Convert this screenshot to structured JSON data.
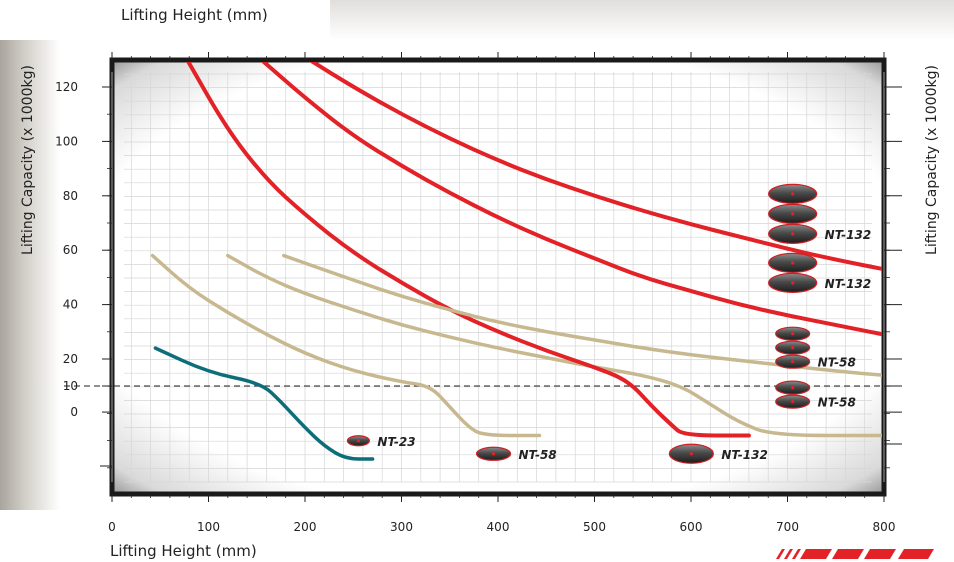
{
  "header": {
    "top_axis_title": "Lifting Height (mm)"
  },
  "chart_data": {
    "type": "line",
    "title": "",
    "xlabel": "Lifting Height (mm)",
    "ylabel": "Lifting Capacity (x 1000kg)",
    "y2label": "Lifting Capacity (x 1000kg)",
    "xlim": [
      0,
      800
    ],
    "x_ticks": [
      0,
      100,
      200,
      300,
      400,
      500,
      600,
      700,
      800
    ],
    "y_ticks": [
      {
        "label": "0",
        "value": 0
      },
      {
        "label": "10",
        "value": 10
      },
      {
        "label": "20",
        "value": 20
      },
      {
        "label": "40",
        "value": 40
      },
      {
        "label": "60",
        "value": 60
      },
      {
        "label": "80",
        "value": 80
      },
      {
        "label": "100",
        "value": 100
      },
      {
        "label": "120",
        "value": 120
      }
    ],
    "reference_line": {
      "y": 10,
      "style": "dashed"
    },
    "grid": true,
    "series": [
      {
        "name": "NT-23",
        "color": "#0d6e7a",
        "points": [
          [
            45,
            24
          ],
          [
            100,
            15
          ],
          [
            155,
            11
          ],
          [
            175,
            4
          ],
          [
            200,
            -6
          ],
          [
            220,
            -13
          ],
          [
            242,
            -18
          ],
          [
            270,
            -18
          ]
        ]
      },
      {
        "name": "NT-58",
        "color": "#c8b890",
        "points": [
          [
            42,
            58
          ],
          [
            80,
            46
          ],
          [
            120,
            37
          ],
          [
            160,
            29
          ],
          [
            200,
            22
          ],
          [
            250,
            15.5
          ],
          [
            300,
            11.5
          ],
          [
            330,
            10
          ],
          [
            350,
            2
          ],
          [
            370,
            -6
          ],
          [
            385,
            -9
          ],
          [
            443,
            -9
          ]
        ]
      },
      {
        "name": "NT-58",
        "color": "#c8b890",
        "points": [
          [
            120,
            58
          ],
          [
            160,
            50
          ],
          [
            200,
            44
          ],
          [
            250,
            38
          ],
          [
            300,
            32.5
          ],
          [
            350,
            28
          ],
          [
            400,
            24
          ],
          [
            450,
            20.5
          ],
          [
            500,
            17
          ],
          [
            550,
            14
          ],
          [
            590,
            10
          ],
          [
            620,
            3
          ],
          [
            650,
            -4
          ],
          [
            685,
            -9
          ],
          [
            800,
            -9
          ]
        ]
      },
      {
        "name": "NT-132",
        "color": "#e32228",
        "points": [
          [
            78,
            130
          ],
          [
            120,
            104
          ],
          [
            160,
            86
          ],
          [
            200,
            73
          ],
          [
            250,
            59
          ],
          [
            300,
            48
          ],
          [
            350,
            38
          ],
          [
            400,
            30
          ],
          [
            450,
            23
          ],
          [
            500,
            17
          ],
          [
            535,
            12
          ],
          [
            560,
            2
          ],
          [
            580,
            -5
          ],
          [
            592,
            -9
          ],
          [
            660,
            -9
          ]
        ]
      },
      {
        "name": "NT-58",
        "color": "#c8b890",
        "points": [
          [
            178,
            58
          ],
          [
            250,
            49
          ],
          [
            300,
            43
          ],
          [
            350,
            38
          ],
          [
            400,
            33.5
          ],
          [
            450,
            30
          ],
          [
            500,
            27
          ],
          [
            550,
            24
          ],
          [
            600,
            21.5
          ],
          [
            650,
            19.5
          ],
          [
            700,
            17.5
          ],
          [
            750,
            15.5
          ],
          [
            800,
            14
          ]
        ]
      },
      {
        "name": "NT-132",
        "color": "#e32228",
        "points": [
          [
            155,
            130
          ],
          [
            200,
            116
          ],
          [
            250,
            102
          ],
          [
            300,
            91
          ],
          [
            350,
            81
          ],
          [
            400,
            72
          ],
          [
            450,
            64
          ],
          [
            500,
            57
          ],
          [
            550,
            50
          ],
          [
            600,
            45
          ],
          [
            650,
            40
          ],
          [
            700,
            36
          ],
          [
            750,
            32.5
          ],
          [
            800,
            29
          ]
        ]
      },
      {
        "name": "NT-132",
        "color": "#e32228",
        "points": [
          [
            205,
            130
          ],
          [
            250,
            120
          ],
          [
            300,
            110
          ],
          [
            350,
            101
          ],
          [
            400,
            93
          ],
          [
            450,
            86
          ],
          [
            500,
            80
          ],
          [
            550,
            74.5
          ],
          [
            600,
            69.5
          ],
          [
            650,
            65
          ],
          [
            700,
            60.5
          ],
          [
            750,
            56.5
          ],
          [
            800,
            53
          ]
        ]
      }
    ],
    "bag_labels": [
      {
        "label": "NT-23",
        "stack": 1,
        "x": 245,
        "y": -11
      },
      {
        "label": "NT-58",
        "stack": 1,
        "x": 385,
        "y": -16
      },
      {
        "label": "NT-132",
        "stack": 1,
        "x": 590,
        "y": -16
      },
      {
        "label": "NT-58",
        "stack": 2,
        "x": 695,
        "y": 4
      },
      {
        "label": "NT-58",
        "stack": 3,
        "x": 695,
        "y": 19
      },
      {
        "label": "NT-132",
        "stack": 2,
        "x": 695,
        "y": 48
      },
      {
        "label": "NT-132",
        "stack": 3,
        "x": 695,
        "y": 66
      }
    ]
  }
}
